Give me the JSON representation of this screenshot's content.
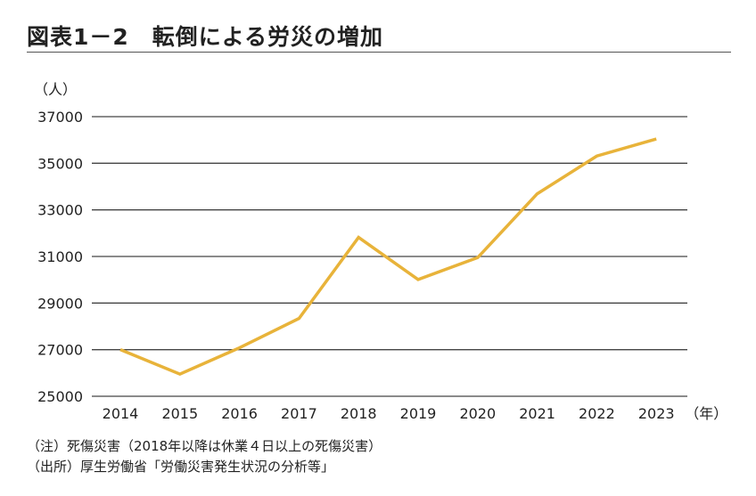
{
  "chart_data": {
    "type": "line",
    "title": "図表1－2　転倒による労災の増加",
    "ylabel": "（人）",
    "xlabel": "（年）",
    "categories": [
      "2014",
      "2015",
      "2016",
      "2017",
      "2018",
      "2019",
      "2020",
      "2021",
      "2022",
      "2023"
    ],
    "series": [
      {
        "values": [
          27000,
          25950,
          27080,
          28340,
          31820,
          30010,
          30950,
          33690,
          35310,
          36040
        ],
        "color": "#E8B33A"
      }
    ],
    "ylim": [
      25000,
      37000
    ],
    "yticks": [
      25000,
      27000,
      29000,
      31000,
      33000,
      35000,
      37000
    ],
    "grid": true,
    "legend": "none"
  },
  "notes": [
    "（注）死傷災害（2018年以降は休業４日以上の死傷災害）",
    "（出所）厚生労働省「労働災害発生状況の分析等」"
  ]
}
